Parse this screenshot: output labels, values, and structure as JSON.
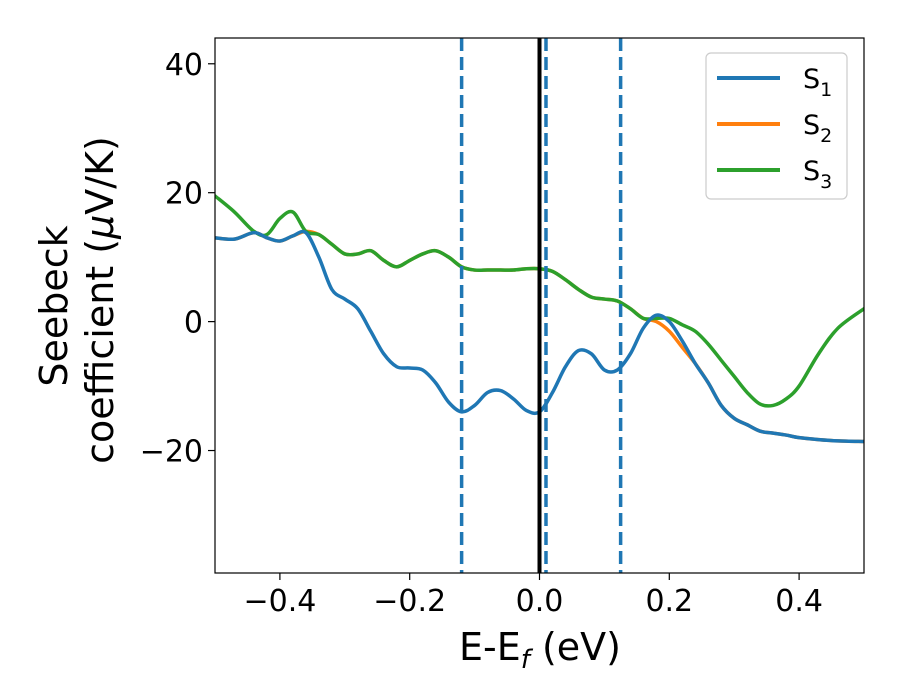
{
  "chart_data": {
    "type": "line",
    "xlabel": "E-E",
    "xlabel_sub": "f",
    "xlabel_unit": " (eV)",
    "ylabel_line1": "Seebeck",
    "ylabel_line2": "coefficient  (",
    "ylabel_mu": "μ",
    "ylabel_unit": "V/K)",
    "xlim": [
      -0.5,
      0.5
    ],
    "ylim": [
      -39,
      44
    ],
    "xticks": [
      -0.4,
      -0.2,
      0.0,
      0.2,
      0.4
    ],
    "xtick_labels": [
      "−0.4",
      "−0.2",
      "0.0",
      "0.2",
      "0.4"
    ],
    "yticks": [
      -20,
      0,
      20,
      40
    ],
    "ytick_labels": [
      "−20",
      "0",
      "20",
      "40"
    ],
    "grid": false,
    "legend_position": "top-right",
    "vertical_lines": [
      {
        "x": -0.12,
        "style": "dashed",
        "color": "#1f77b4"
      },
      {
        "x": 0.0,
        "style": "solid",
        "color": "#000000"
      },
      {
        "x": 0.01,
        "style": "dashed",
        "color": "#1f77b4"
      },
      {
        "x": 0.125,
        "style": "dashed",
        "color": "#1f77b4"
      }
    ],
    "series": [
      {
        "label_base": "S",
        "label_sub": "1",
        "color": "#1f77b4",
        "x": [
          -0.5,
          -0.47,
          -0.44,
          -0.42,
          -0.4,
          -0.38,
          -0.36,
          -0.34,
          -0.32,
          -0.3,
          -0.28,
          -0.26,
          -0.24,
          -0.22,
          -0.2,
          -0.18,
          -0.16,
          -0.14,
          -0.12,
          -0.1,
          -0.08,
          -0.06,
          -0.04,
          -0.02,
          0.0,
          0.02,
          0.04,
          0.06,
          0.08,
          0.1,
          0.12,
          0.14,
          0.16,
          0.18,
          0.2,
          0.22,
          0.24,
          0.26,
          0.28,
          0.3,
          0.32,
          0.34,
          0.36,
          0.38,
          0.4,
          0.43,
          0.46,
          0.5
        ],
        "y": [
          13,
          12.8,
          13.8,
          13,
          12.5,
          13.3,
          13.8,
          10,
          5,
          3.5,
          2,
          -1.5,
          -5,
          -7,
          -7.2,
          -7.5,
          -9.5,
          -12.5,
          -14,
          -13,
          -11,
          -10.7,
          -12,
          -13.8,
          -14,
          -11,
          -7,
          -4.5,
          -5,
          -7.5,
          -7.5,
          -5,
          -1,
          1,
          0,
          -3,
          -6.5,
          -9.5,
          -13,
          -15,
          -16,
          -17,
          -17.3,
          -17.6,
          -18,
          -18.3,
          -18.5,
          -18.6
        ]
      },
      {
        "label_base": "S",
        "label_sub": "2",
        "color": "#ff7f0e",
        "x": [
          -0.5,
          -0.47,
          -0.44,
          -0.42,
          -0.4,
          -0.38,
          -0.36,
          -0.34,
          -0.32,
          -0.3,
          -0.28,
          -0.26,
          -0.24,
          -0.22,
          -0.2,
          -0.18,
          -0.16,
          -0.14,
          -0.12,
          -0.1,
          -0.08,
          -0.06,
          -0.04,
          -0.02,
          0.0,
          0.02,
          0.04,
          0.06,
          0.08,
          0.1,
          0.12,
          0.14,
          0.16,
          0.18,
          0.2,
          0.22,
          0.24,
          0.26,
          0.28,
          0.3,
          0.32,
          0.34,
          0.36,
          0.38,
          0.4,
          0.43,
          0.46,
          0.5
        ],
        "y": [
          13,
          12.8,
          13.8,
          13,
          12.5,
          13.3,
          14,
          13.5,
          12,
          10.5,
          10.5,
          11,
          9.5,
          8.5,
          9.5,
          10.5,
          11,
          10,
          8.5,
          8,
          8,
          8,
          8,
          8.2,
          8.2,
          7.8,
          6.5,
          5,
          3.8,
          3.5,
          3.2,
          2,
          0.5,
          0,
          -1.5,
          -4,
          -6.5,
          -9.5,
          -13,
          -15,
          -16,
          -17,
          -17.3,
          -17.6,
          -18,
          -18.3,
          -18.5,
          -18.6
        ]
      },
      {
        "label_base": "S",
        "label_sub": "3",
        "color": "#2ca02c",
        "x": [
          -0.5,
          -0.47,
          -0.44,
          -0.42,
          -0.4,
          -0.38,
          -0.36,
          -0.34,
          -0.32,
          -0.3,
          -0.28,
          -0.26,
          -0.24,
          -0.22,
          -0.2,
          -0.18,
          -0.16,
          -0.14,
          -0.12,
          -0.1,
          -0.08,
          -0.06,
          -0.04,
          -0.02,
          0.0,
          0.02,
          0.04,
          0.06,
          0.08,
          0.1,
          0.12,
          0.14,
          0.16,
          0.18,
          0.2,
          0.22,
          0.24,
          0.26,
          0.28,
          0.3,
          0.32,
          0.34,
          0.36,
          0.38,
          0.4,
          0.43,
          0.46,
          0.5
        ],
        "y": [
          19.5,
          17,
          14,
          13.5,
          16,
          17,
          14,
          13.5,
          12,
          10.5,
          10.5,
          11,
          9.5,
          8.5,
          9.5,
          10.5,
          11,
          10,
          8.5,
          8,
          8,
          8,
          8,
          8.2,
          8.2,
          7.8,
          6.5,
          5,
          3.8,
          3.5,
          3.2,
          2,
          0.5,
          0.5,
          0.5,
          -0.5,
          -1.5,
          -3.5,
          -6,
          -8.5,
          -11,
          -12.8,
          -13,
          -12,
          -10,
          -5,
          -1,
          2
        ]
      }
    ]
  }
}
